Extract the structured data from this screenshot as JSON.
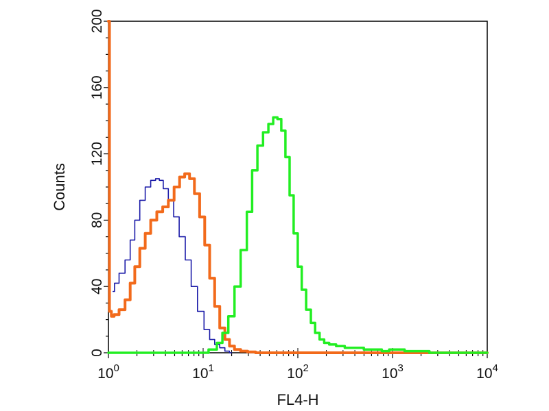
{
  "chart_data": {
    "type": "line",
    "title": "",
    "xlabel": "FL4-H",
    "ylabel": "Counts",
    "xscale": "log",
    "xlim": [
      1,
      10000
    ],
    "ylim": [
      0,
      200
    ],
    "grid": false,
    "legend": "none",
    "x_ticks": [
      {
        "value": 1,
        "base": "10",
        "exp": "0"
      },
      {
        "value": 10,
        "base": "10",
        "exp": "1"
      },
      {
        "value": 100,
        "base": "10",
        "exp": "2"
      },
      {
        "value": 1000,
        "base": "10",
        "exp": "3"
      },
      {
        "value": 10000,
        "base": "10",
        "exp": "4"
      }
    ],
    "y_ticks": [
      0,
      40,
      80,
      120,
      160,
      200
    ],
    "series": [
      {
        "color": "#1a1aa8",
        "width": 1.6,
        "x": [
          1.12,
          1.2,
          1.4,
          1.6,
          1.8,
          2.0,
          2.3,
          2.6,
          3.0,
          3.3,
          3.6,
          4.0,
          4.6,
          5.2,
          6.0,
          7.0,
          8.0,
          9.5,
          11,
          12.5,
          14,
          16,
          18,
          20
        ],
        "y": [
          37,
          42,
          48,
          56,
          68,
          80,
          92,
          100,
          104,
          105,
          104,
          99,
          92,
          82,
          70,
          56,
          40,
          25,
          14,
          8,
          5,
          3,
          1,
          0
        ]
      },
      {
        "color": "#f26a1b",
        "width": 4,
        "x": [
          1.0,
          1.05,
          1.1,
          1.2,
          1.4,
          1.6,
          1.8,
          2.0,
          2.3,
          2.6,
          3.0,
          3.5,
          4.0,
          4.6,
          5.3,
          6.0,
          6.8,
          7.6,
          8.6,
          9.8,
          11,
          12.5,
          14,
          16,
          18,
          20,
          23,
          27,
          32,
          40,
          60,
          100,
          400,
          10000
        ],
        "y": [
          200,
          25,
          22,
          23,
          26,
          32,
          42,
          52,
          63,
          72,
          80,
          85,
          88,
          92,
          100,
          106,
          108,
          105,
          96,
          82,
          65,
          45,
          28,
          15,
          8,
          4,
          2,
          1,
          0.5,
          0,
          0,
          0,
          0,
          0
        ]
      },
      {
        "color": "#22ee22",
        "width": 3.5,
        "x": [
          1.0,
          10,
          13,
          15,
          17,
          20,
          23,
          27,
          31,
          35,
          40,
          46,
          52,
          58,
          64,
          70,
          78,
          86,
          95,
          105,
          115,
          130,
          145,
          160,
          180,
          200,
          230,
          280,
          350,
          450,
          550,
          700,
          850,
          1000,
          1200,
          1500,
          2000,
          3000,
          10000
        ],
        "y": [
          0,
          0,
          2,
          6,
          12,
          22,
          40,
          62,
          85,
          110,
          125,
          133,
          138,
          142,
          141,
          134,
          118,
          95,
          72,
          52,
          38,
          26,
          18,
          12,
          8,
          6,
          5,
          4,
          3,
          3,
          2,
          2,
          1,
          2,
          2,
          1,
          1,
          0,
          0
        ]
      }
    ]
  }
}
